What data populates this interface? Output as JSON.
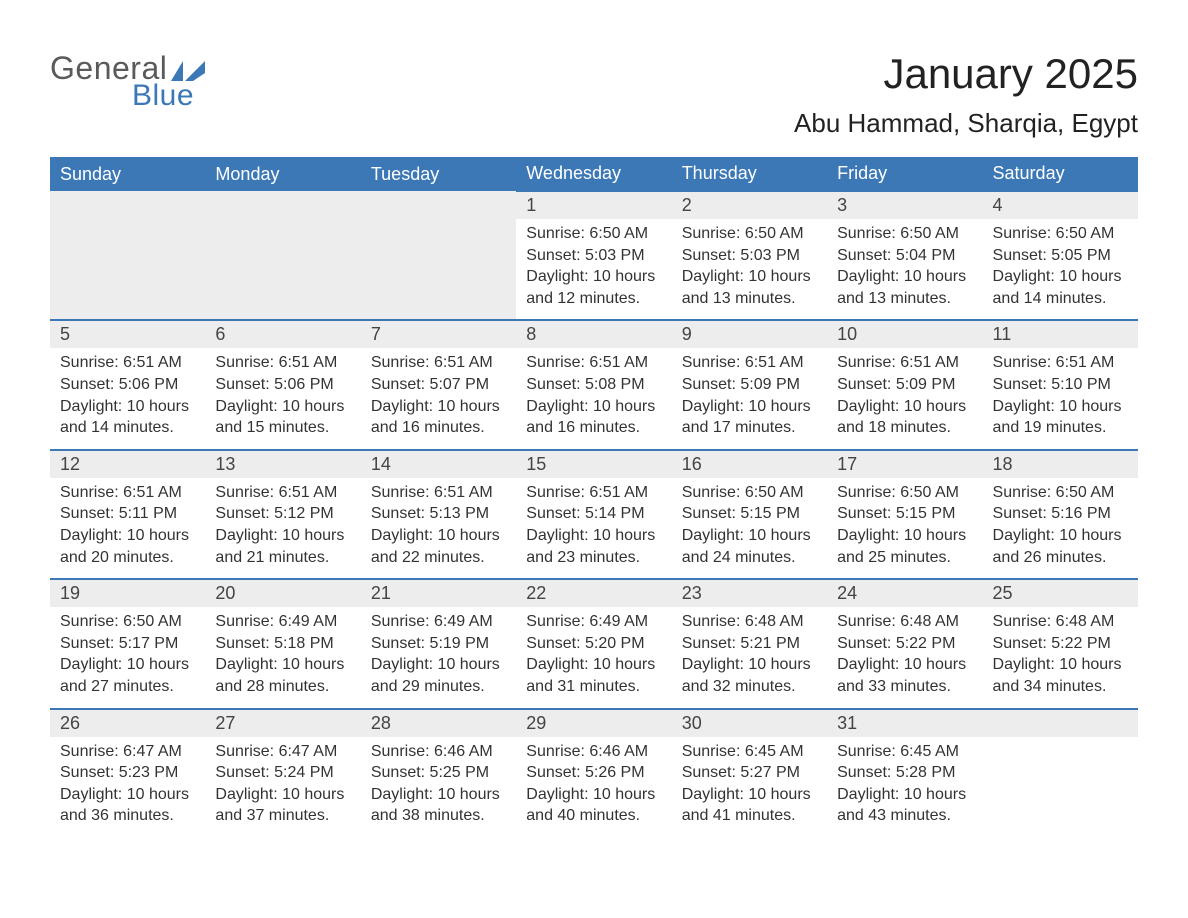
{
  "logo": {
    "word1": "General",
    "word2": "Blue",
    "flag_color": "#3b78b5"
  },
  "title": "January 2025",
  "location": "Abu Hammad, Sharqia, Egypt",
  "colors": {
    "header_bg": "#3b78b5",
    "header_text": "#ffffff",
    "daynum_bg": "#ededed",
    "row_border": "#3b78b5",
    "text": "#333333"
  },
  "days_of_week": [
    "Sunday",
    "Monday",
    "Tuesday",
    "Wednesday",
    "Thursday",
    "Friday",
    "Saturday"
  ],
  "weeks": [
    [
      null,
      null,
      null,
      {
        "n": "1",
        "sunrise": "6:50 AM",
        "sunset": "5:03 PM",
        "daylight": "10 hours and 12 minutes."
      },
      {
        "n": "2",
        "sunrise": "6:50 AM",
        "sunset": "5:03 PM",
        "daylight": "10 hours and 13 minutes."
      },
      {
        "n": "3",
        "sunrise": "6:50 AM",
        "sunset": "5:04 PM",
        "daylight": "10 hours and 13 minutes."
      },
      {
        "n": "4",
        "sunrise": "6:50 AM",
        "sunset": "5:05 PM",
        "daylight": "10 hours and 14 minutes."
      }
    ],
    [
      {
        "n": "5",
        "sunrise": "6:51 AM",
        "sunset": "5:06 PM",
        "daylight": "10 hours and 14 minutes."
      },
      {
        "n": "6",
        "sunrise": "6:51 AM",
        "sunset": "5:06 PM",
        "daylight": "10 hours and 15 minutes."
      },
      {
        "n": "7",
        "sunrise": "6:51 AM",
        "sunset": "5:07 PM",
        "daylight": "10 hours and 16 minutes."
      },
      {
        "n": "8",
        "sunrise": "6:51 AM",
        "sunset": "5:08 PM",
        "daylight": "10 hours and 16 minutes."
      },
      {
        "n": "9",
        "sunrise": "6:51 AM",
        "sunset": "5:09 PM",
        "daylight": "10 hours and 17 minutes."
      },
      {
        "n": "10",
        "sunrise": "6:51 AM",
        "sunset": "5:09 PM",
        "daylight": "10 hours and 18 minutes."
      },
      {
        "n": "11",
        "sunrise": "6:51 AM",
        "sunset": "5:10 PM",
        "daylight": "10 hours and 19 minutes."
      }
    ],
    [
      {
        "n": "12",
        "sunrise": "6:51 AM",
        "sunset": "5:11 PM",
        "daylight": "10 hours and 20 minutes."
      },
      {
        "n": "13",
        "sunrise": "6:51 AM",
        "sunset": "5:12 PM",
        "daylight": "10 hours and 21 minutes."
      },
      {
        "n": "14",
        "sunrise": "6:51 AM",
        "sunset": "5:13 PM",
        "daylight": "10 hours and 22 minutes."
      },
      {
        "n": "15",
        "sunrise": "6:51 AM",
        "sunset": "5:14 PM",
        "daylight": "10 hours and 23 minutes."
      },
      {
        "n": "16",
        "sunrise": "6:50 AM",
        "sunset": "5:15 PM",
        "daylight": "10 hours and 24 minutes."
      },
      {
        "n": "17",
        "sunrise": "6:50 AM",
        "sunset": "5:15 PM",
        "daylight": "10 hours and 25 minutes."
      },
      {
        "n": "18",
        "sunrise": "6:50 AM",
        "sunset": "5:16 PM",
        "daylight": "10 hours and 26 minutes."
      }
    ],
    [
      {
        "n": "19",
        "sunrise": "6:50 AM",
        "sunset": "5:17 PM",
        "daylight": "10 hours and 27 minutes."
      },
      {
        "n": "20",
        "sunrise": "6:49 AM",
        "sunset": "5:18 PM",
        "daylight": "10 hours and 28 minutes."
      },
      {
        "n": "21",
        "sunrise": "6:49 AM",
        "sunset": "5:19 PM",
        "daylight": "10 hours and 29 minutes."
      },
      {
        "n": "22",
        "sunrise": "6:49 AM",
        "sunset": "5:20 PM",
        "daylight": "10 hours and 31 minutes."
      },
      {
        "n": "23",
        "sunrise": "6:48 AM",
        "sunset": "5:21 PM",
        "daylight": "10 hours and 32 minutes."
      },
      {
        "n": "24",
        "sunrise": "6:48 AM",
        "sunset": "5:22 PM",
        "daylight": "10 hours and 33 minutes."
      },
      {
        "n": "25",
        "sunrise": "6:48 AM",
        "sunset": "5:22 PM",
        "daylight": "10 hours and 34 minutes."
      }
    ],
    [
      {
        "n": "26",
        "sunrise": "6:47 AM",
        "sunset": "5:23 PM",
        "daylight": "10 hours and 36 minutes."
      },
      {
        "n": "27",
        "sunrise": "6:47 AM",
        "sunset": "5:24 PM",
        "daylight": "10 hours and 37 minutes."
      },
      {
        "n": "28",
        "sunrise": "6:46 AM",
        "sunset": "5:25 PM",
        "daylight": "10 hours and 38 minutes."
      },
      {
        "n": "29",
        "sunrise": "6:46 AM",
        "sunset": "5:26 PM",
        "daylight": "10 hours and 40 minutes."
      },
      {
        "n": "30",
        "sunrise": "6:45 AM",
        "sunset": "5:27 PM",
        "daylight": "10 hours and 41 minutes."
      },
      {
        "n": "31",
        "sunrise": "6:45 AM",
        "sunset": "5:28 PM",
        "daylight": "10 hours and 43 minutes."
      },
      null
    ]
  ],
  "labels": {
    "sunrise": "Sunrise: ",
    "sunset": "Sunset: ",
    "daylight": "Daylight: "
  }
}
